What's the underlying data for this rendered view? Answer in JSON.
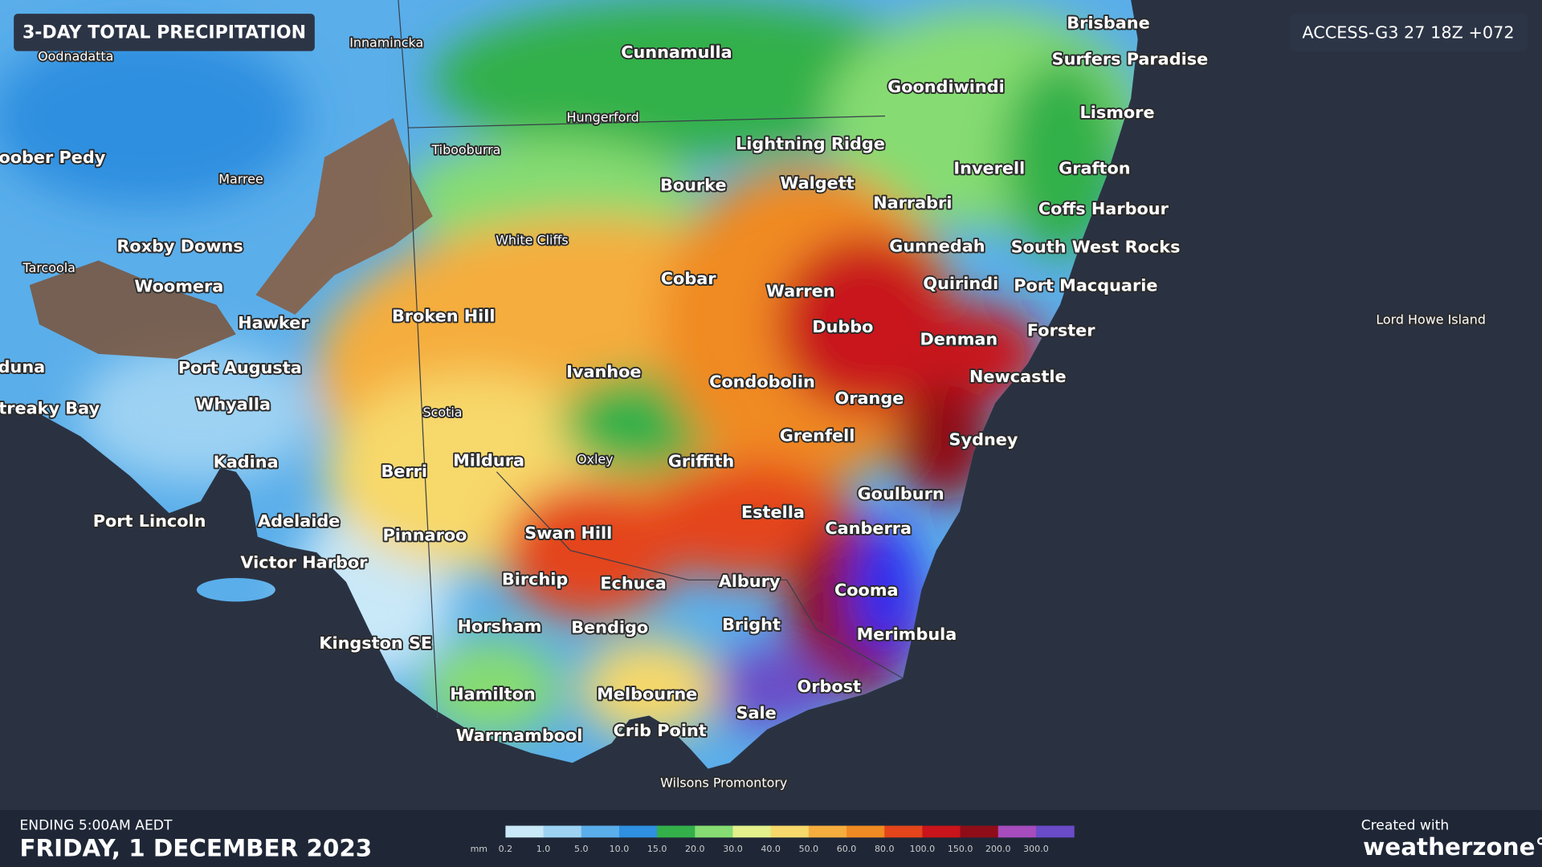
{
  "header": {
    "title": "3-DAY TOTAL PRECIPITATION",
    "model": "ACCESS-G3 27 18Z +072"
  },
  "places": [
    "Cunnamulla",
    "Brisbane",
    "Surfers Paradise",
    "Goondiwindi",
    "Lismore",
    "Lightning Ridge",
    "Inverell",
    "Grafton",
    "Bourke",
    "Walgett",
    "Narrabri",
    "Coffs Harbour",
    "oober Pedy",
    "Roxby Downs",
    "Gunnedah",
    "South West Rocks",
    "Woomera",
    "Quirindi",
    "Port Macquarie",
    "Warren",
    "Cobar",
    "Hawker",
    "Broken Hill",
    "Dubbo",
    "Denman",
    "Forster",
    "duna",
    "Port Augusta",
    "Ivanhoe",
    "Condobolin",
    "Newcastle",
    "treaky Bay",
    "Whyalla",
    "Orange",
    "Grenfell",
    "Sydney",
    "Kadina",
    "Mildura",
    "Berri",
    "Griffith",
    "Goulburn",
    "Port Lincoln",
    "Adelaide",
    "Estella",
    "Canberra",
    "Pinnaroo",
    "Swan Hill",
    "Victor Harbor",
    "Birchip",
    "Echuca",
    "Albury",
    "Cooma",
    "Horsham",
    "Bendigo",
    "Bright",
    "Merimbula",
    "Kingston SE",
    "Orbost",
    "Hamilton",
    "Melbourne",
    "Sale",
    "Crib Point",
    "Warrnambool",
    "Innamincka",
    "Oodnadatta",
    "Hungerford",
    "Tibooburra",
    "Marree",
    "White Cliffs",
    "Tarcoola",
    "Scotia",
    "Oxley",
    "Lord Howe Island",
    "Wilsons Promontory"
  ],
  "legend": {
    "unit": "mm",
    "items": [
      {
        "label": "0.2",
        "color": "#c9e8f8"
      },
      {
        "label": "1.0",
        "color": "#9dd2f3"
      },
      {
        "label": "5.0",
        "color": "#5aaeea"
      },
      {
        "label": "10.0",
        "color": "#2f8fe0"
      },
      {
        "label": "15.0",
        "color": "#33b04a"
      },
      {
        "label": "20.0",
        "color": "#86dc72"
      },
      {
        "label": "30.0",
        "color": "#e3f08c"
      },
      {
        "label": "40.0",
        "color": "#f7d86a"
      },
      {
        "label": "50.0",
        "color": "#f5ad3e"
      },
      {
        "label": "60.0",
        "color": "#f08a22"
      },
      {
        "label": "80.0",
        "color": "#e4451a"
      },
      {
        "label": "100.0",
        "color": "#c8141a"
      },
      {
        "label": "150.0",
        "color": "#8f0d18"
      },
      {
        "label": "200.0",
        "color": "#a64cbc"
      },
      {
        "label": "300.0",
        "color": "#6a4bc8"
      }
    ]
  },
  "footer": {
    "ending": "ENDING 5:00AM AEDT",
    "date": "FRIDAY, 1 DECEMBER 2023",
    "credit": "Created with",
    "brand": "weatherzone°"
  }
}
